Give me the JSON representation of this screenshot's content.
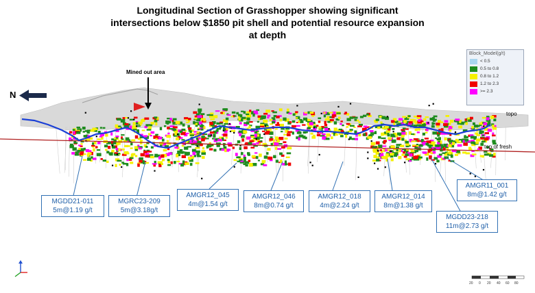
{
  "title": {
    "line1": "Longitudinal Section of Grasshopper showing significant",
    "line2": "intersections below $1850 pit shell and potential resource expansion",
    "line3": "at depth"
  },
  "labels": {
    "north": "N",
    "mined_out": "Mined out area",
    "topo": "topo",
    "top_of_fresh": "top of fresh"
  },
  "legend": {
    "title": "Block_Model(g/t)",
    "items": [
      {
        "label": "< 0.5",
        "color": "#a9d6ef"
      },
      {
        "label": "0.5 to 0.8",
        "color": "#1e8c1e"
      },
      {
        "label": "0.8 to 1.2",
        "color": "#f5f000"
      },
      {
        "label": "1.2 to 2.3",
        "color": "#f00000"
      },
      {
        "label": ">= 2.3",
        "color": "#ff00ff"
      }
    ]
  },
  "callouts": [
    {
      "hole": "MGDD21-011",
      "result": "5m@1.19 g/t"
    },
    {
      "hole": "MGRC23-209",
      "result": "5m@3.18g/t"
    },
    {
      "hole": "AMGR12_045",
      "result": "4m@1.54 g/t"
    },
    {
      "hole": "AMGR12_046",
      "result": "8m@0.74 g/t"
    },
    {
      "hole": "AMGR12_018",
      "result": "4m@2.24 g/t"
    },
    {
      "hole": "AMGR12_014",
      "result": "8m@1.38 g/t"
    },
    {
      "hole": "MGDD23-218",
      "result": "11m@2.73 g/t"
    },
    {
      "hole": "AMGR11_001",
      "result": "8m@1.42 g/t"
    }
  ],
  "scale_bar": {
    "ticks": [
      "20",
      "0",
      "20",
      "40",
      "60",
      "80"
    ]
  },
  "colors": {
    "callout_border": "#2f6fb3",
    "callout_text": "#1f5fa8",
    "pit_line": "#1a3fd6",
    "fresh_line": "#b02020"
  }
}
